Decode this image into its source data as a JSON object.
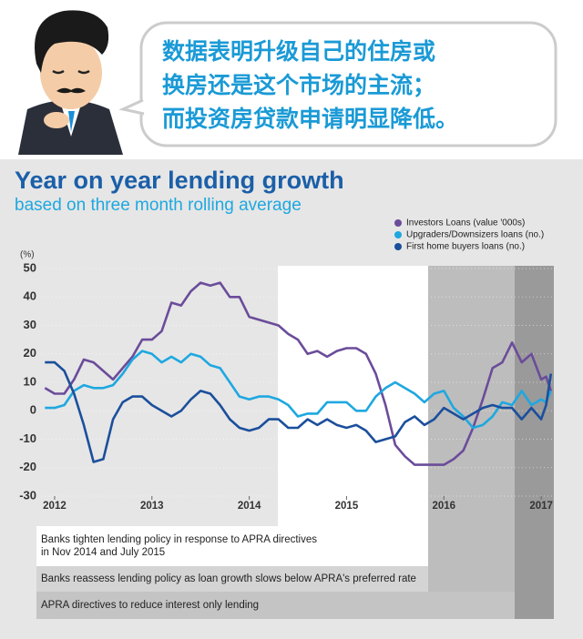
{
  "header": {
    "bubble_lines": [
      "数据表明升级自己的住房或",
      "换房还是这个市场的主流；",
      "而投资房贷款申请明显降低。"
    ]
  },
  "chart_data": {
    "type": "line",
    "title": "Year on year lending growth",
    "subtitle": "based on three month rolling average",
    "y_unit_label": "(%)",
    "x": [
      2011.9,
      2012.0,
      2012.1,
      2012.2,
      2012.3,
      2012.4,
      2012.5,
      2012.6,
      2012.7,
      2012.8,
      2012.9,
      2013.0,
      2013.1,
      2013.2,
      2013.3,
      2013.4,
      2013.5,
      2013.6,
      2013.7,
      2013.8,
      2013.9,
      2014.0,
      2014.1,
      2014.2,
      2014.3,
      2014.4,
      2014.5,
      2014.6,
      2014.7,
      2014.8,
      2014.9,
      2015.0,
      2015.1,
      2015.2,
      2015.3,
      2015.4,
      2015.5,
      2015.6,
      2015.7,
      2015.8,
      2015.9,
      2016.0,
      2016.1,
      2016.2,
      2016.3,
      2016.4,
      2016.5,
      2016.6,
      2016.7,
      2016.8,
      2016.9,
      2017.0,
      2017.05,
      2017.1
    ],
    "series": [
      {
        "name": "Investors Loans (value '000s)",
        "color": "#6b4c9a",
        "values": [
          8,
          6,
          6,
          11,
          18,
          17,
          14,
          11,
          15,
          19,
          25,
          25,
          28,
          38,
          37,
          42,
          45,
          44,
          45,
          40,
          40,
          33,
          32,
          31,
          30,
          27,
          25,
          20,
          21,
          19,
          21,
          22,
          22,
          20,
          13,
          2,
          -12,
          -16,
          -19,
          -19,
          -19,
          -19,
          -17,
          -14,
          -6,
          4,
          15,
          17,
          24,
          17,
          20,
          11,
          12,
          7
        ]
      },
      {
        "name": "Upgraders/Downsizers loans (no.)",
        "color": "#1ea8e0",
        "values": [
          1,
          1,
          2,
          7,
          9,
          8,
          8,
          9,
          13,
          18,
          21,
          20,
          17,
          19,
          17,
          20,
          19,
          16,
          15,
          10,
          5,
          4,
          5,
          5,
          4,
          2,
          -2,
          -1,
          -1,
          3,
          3,
          3,
          0,
          0,
          5,
          8,
          10,
          8,
          6,
          3,
          6,
          7,
          1,
          -2,
          -6,
          -5,
          -2,
          3,
          2,
          7,
          2,
          4,
          3,
          7
        ]
      },
      {
        "name": "First home buyers loans (no.)",
        "color": "#1b4f9c",
        "values": [
          17,
          17,
          14,
          6,
          -5,
          -18,
          -17,
          -3,
          3,
          5,
          5,
          2,
          0,
          -2,
          0,
          4,
          7,
          6,
          2,
          -3,
          -6,
          -7,
          -6,
          -3,
          -3,
          -6,
          -6,
          -3,
          -5,
          -3,
          -5,
          -6,
          -5,
          -7,
          -11,
          -10,
          -9,
          -4,
          -2,
          -5,
          -3,
          1,
          -1,
          -3,
          -1,
          1,
          2,
          1,
          1,
          -3,
          1,
          -3,
          2,
          13
        ]
      }
    ],
    "xlim": [
      2011.86,
      2017.13
    ],
    "xticks": [
      2012,
      2013,
      2014,
      2015,
      2016,
      2017
    ],
    "ylim": [
      -30,
      50
    ],
    "yticks": [
      -30,
      -20,
      -10,
      0,
      10,
      20,
      30,
      40,
      50
    ],
    "grid": true,
    "legend": "top-right",
    "annotations": [
      "Banks tighten lending policy in response to APRA directives",
      "in Nov 2014 and July 2015",
      "Banks reassess lending policy as loan growth slows below APRA's preferred rate",
      "APRA  directives to reduce interest only lending"
    ]
  }
}
